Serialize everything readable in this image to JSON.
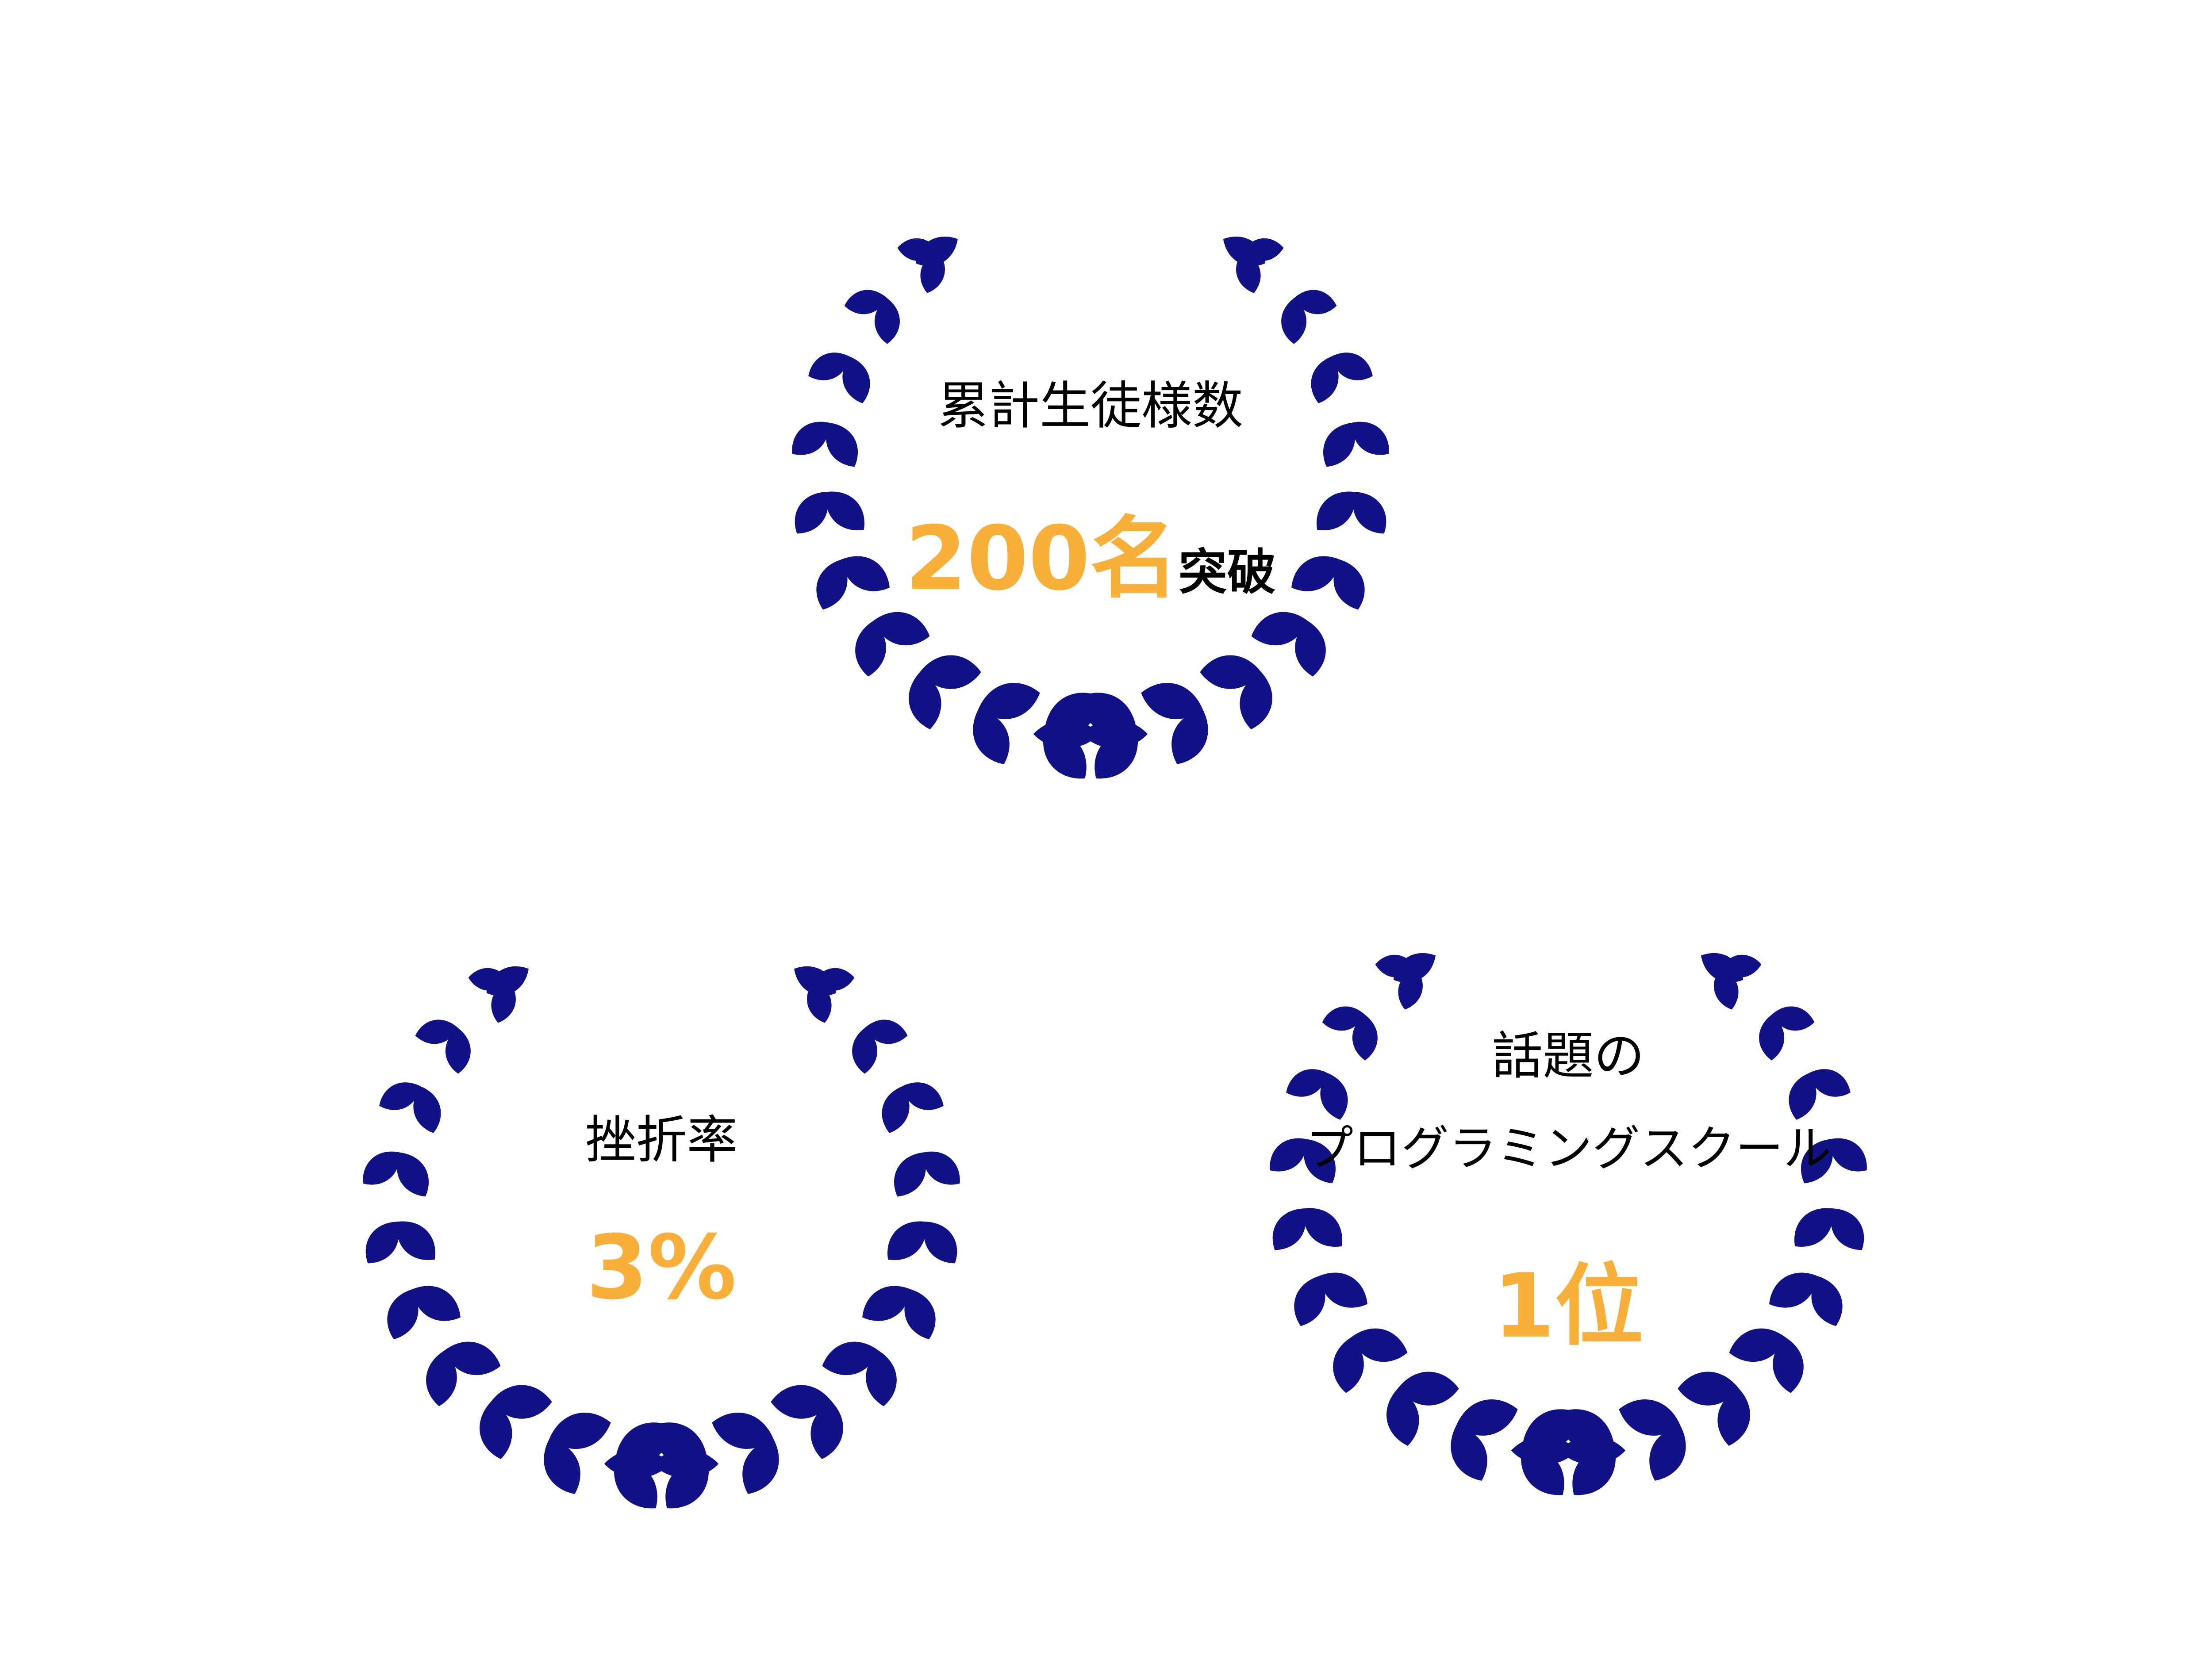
{
  "badges": [
    {
      "label": "累計生徒様数",
      "value": "200名",
      "suffix": "突破"
    },
    {
      "label": "挫折率",
      "value": "3%"
    },
    {
      "label_line1": "話題の",
      "label_line2": "プログラミングスクール",
      "value": "1位"
    }
  ],
  "colors": {
    "wreath": "#101286",
    "accent": "#f8b03a",
    "text": "#000000",
    "background": "#ffffff"
  },
  "icons": [
    "laurel-wreath-icon"
  ]
}
